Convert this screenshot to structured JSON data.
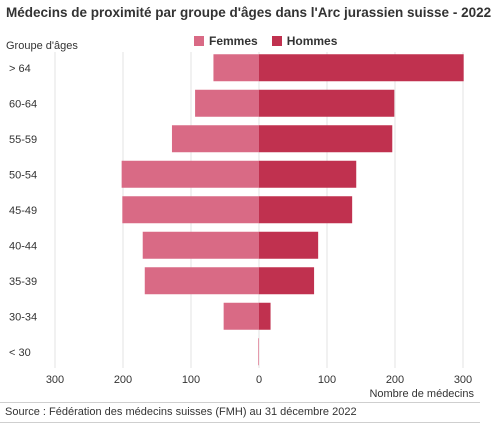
{
  "title": "Médecins de proximité par groupe d'âges dans l'Arc jurassien suisse - 2022",
  "source": "Source : Fédération des médecins suisses (FMH) au 31 décembre 2022",
  "colors": {
    "femmes": "#d96a85",
    "hommes": "#c0314f",
    "grid": "#e3e3e3"
  },
  "chart_data": {
    "type": "bar",
    "orientation": "horizontal-population-pyramid",
    "title": "Médecins de proximité par groupe d'âges dans l'Arc jurassien suisse - 2022",
    "ylabel": "Groupe d'âges",
    "xlabel": "Nombre de médecins",
    "categories": [
      "> 64",
      "60-64",
      "55-59",
      "50-54",
      "45-49",
      "40-44",
      "35-39",
      "30-34",
      "< 30"
    ],
    "series": [
      {
        "name": "Femmes",
        "side": "left",
        "values": [
          67,
          94,
          128,
          202,
          201,
          171,
          168,
          52,
          1
        ]
      },
      {
        "name": "Hommes",
        "side": "right",
        "values": [
          301,
          199,
          196,
          143,
          137,
          87,
          81,
          17,
          0
        ]
      }
    ],
    "xlim": [
      -300,
      300
    ],
    "xticks": [
      -300,
      -200,
      -100,
      0,
      100,
      200,
      300
    ],
    "xtick_labels": [
      "300",
      "200",
      "100",
      "0",
      "100",
      "200",
      "300"
    ],
    "legend_position": "top",
    "grid": "vertical"
  }
}
